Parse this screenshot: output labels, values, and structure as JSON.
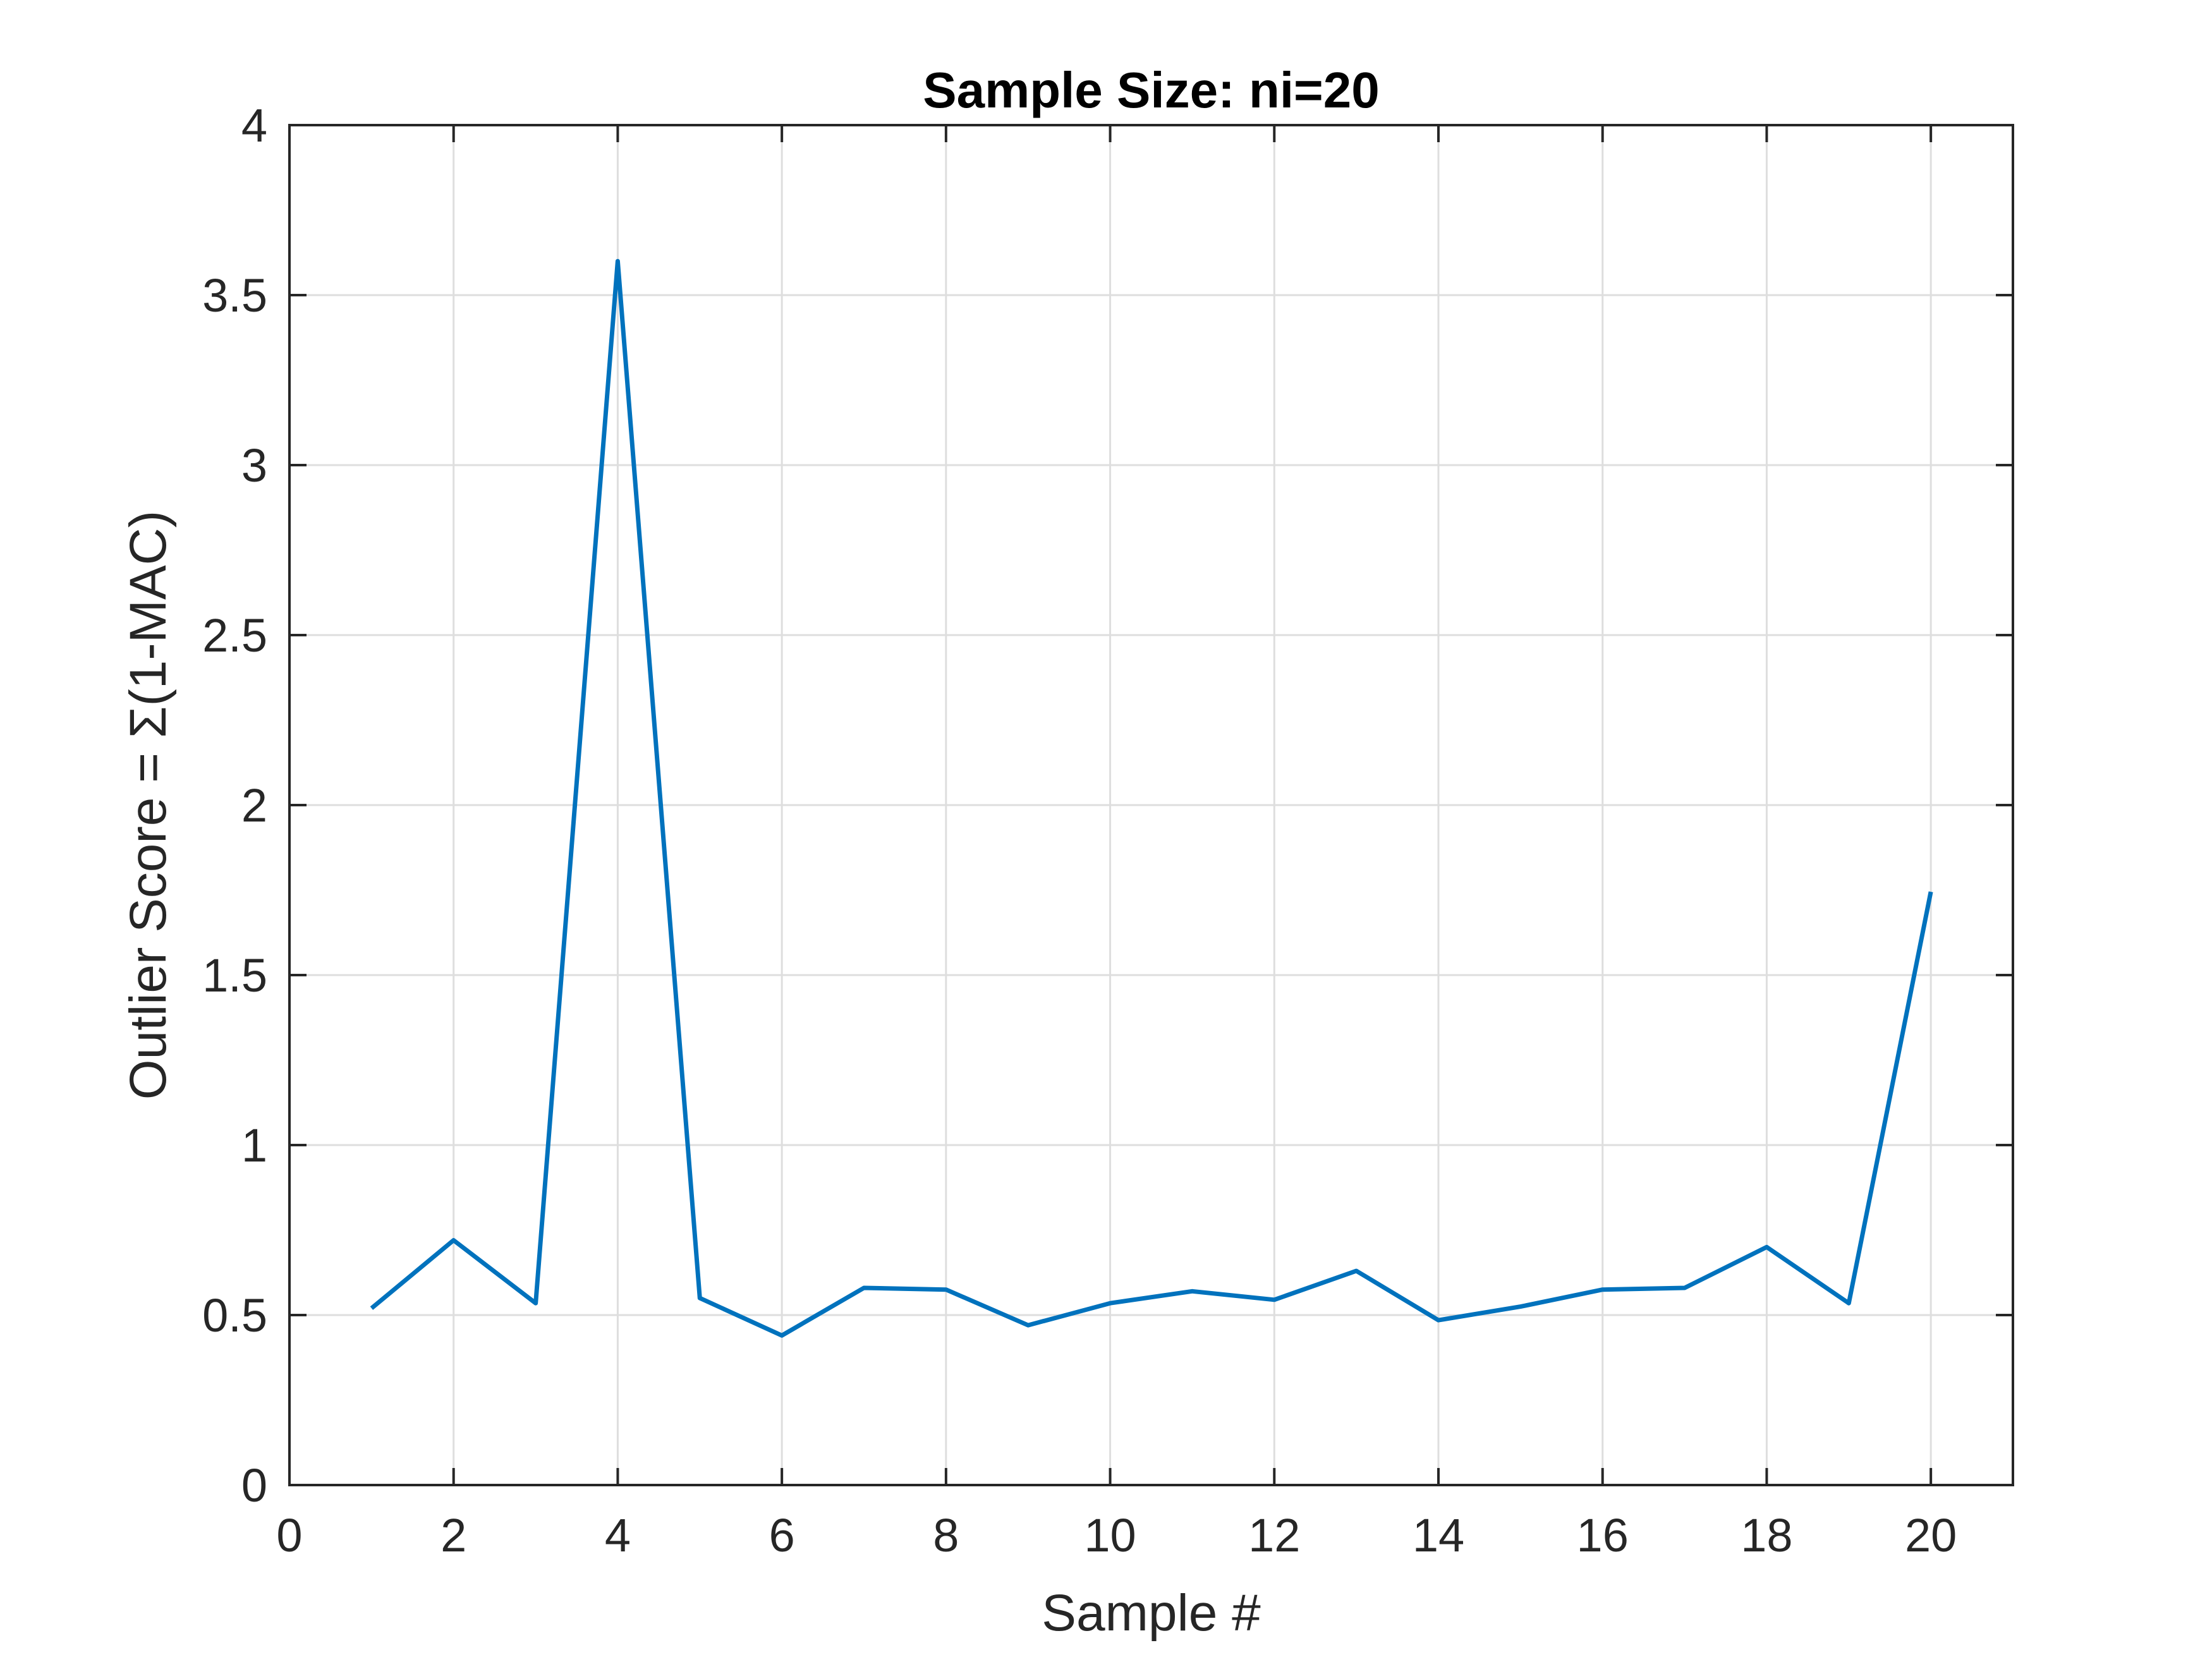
{
  "chart_data": {
    "type": "line",
    "title": "Sample Size: ni=20",
    "xlabel": "Sample #",
    "ylabel": "Outlier Score = Σ(1-MAC)",
    "xlim": [
      0,
      21
    ],
    "ylim": [
      0,
      4
    ],
    "xticks": [
      0,
      2,
      4,
      6,
      8,
      10,
      12,
      14,
      16,
      18,
      20
    ],
    "xtick_labels": [
      "0",
      "2",
      "4",
      "6",
      "8",
      "10",
      "12",
      "14",
      "16",
      "18",
      "20"
    ],
    "yticks": [
      0,
      0.5,
      1,
      1.5,
      2,
      2.5,
      3,
      3.5,
      4
    ],
    "ytick_labels": [
      "0",
      "0.5",
      "1",
      "1.5",
      "2",
      "2.5",
      "3",
      "3.5",
      "4"
    ],
    "grid": true,
    "legend": false,
    "series": [
      {
        "color": "#0072BD",
        "x": [
          1,
          2,
          3,
          4,
          5,
          6,
          7,
          8,
          9,
          10,
          11,
          12,
          13,
          14,
          15,
          16,
          17,
          18,
          19,
          20
        ],
        "y": [
          0.52,
          0.72,
          0.535,
          3.6,
          0.55,
          0.44,
          0.58,
          0.575,
          0.47,
          0.535,
          0.57,
          0.545,
          0.63,
          0.485,
          0.525,
          0.575,
          0.58,
          0.7,
          0.535,
          1.745
        ]
      }
    ]
  }
}
